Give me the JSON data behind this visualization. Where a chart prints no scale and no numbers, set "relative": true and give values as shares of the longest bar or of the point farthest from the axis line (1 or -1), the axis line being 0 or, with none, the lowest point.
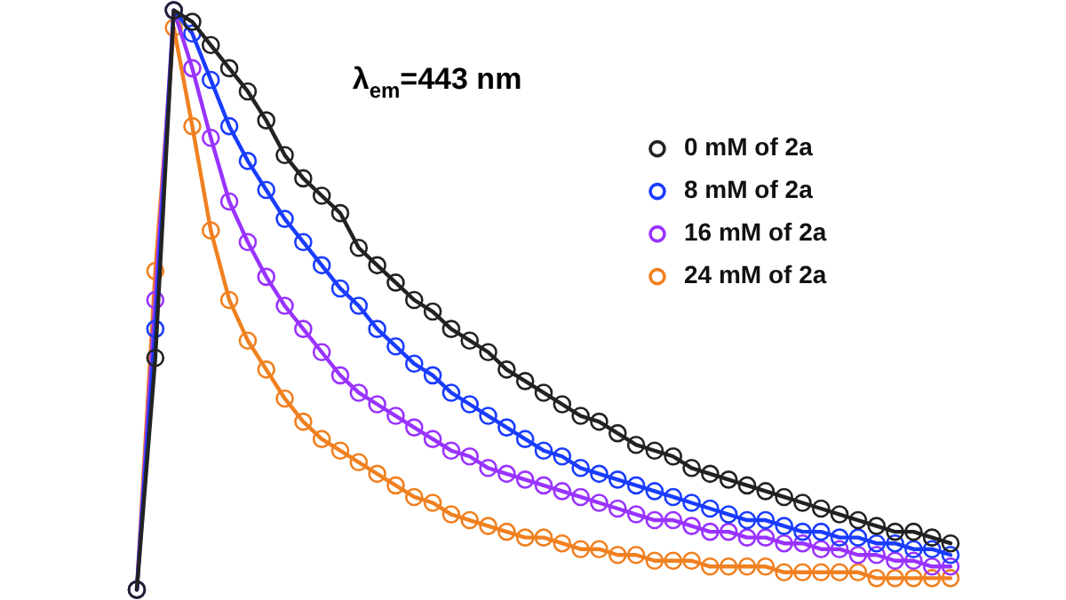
{
  "chart_data": {
    "type": "line",
    "relative": true,
    "marker": "circle",
    "legend": "top right",
    "tick_labels": false,
    "annotations": [
      "λ$_{em}$=443 nm"
    ],
    "categories": [
      null,
      null,
      null,
      null,
      null,
      null,
      null,
      null,
      null,
      null,
      null,
      null,
      null,
      null,
      null,
      null,
      null,
      null,
      null,
      null,
      null,
      null,
      null,
      null,
      null,
      null,
      null,
      null,
      null,
      null,
      null,
      null,
      null,
      null,
      null,
      null,
      null,
      null,
      null,
      null,
      null,
      null,
      null,
      null,
      null
    ],
    "series": [
      {
        "name": "0 mM of 2a",
        "color": "#222222",
        "values": [
          0,
          0.4,
          1,
          0.98,
          0.94,
          0.9,
          0.86,
          0.81,
          0.75,
          0.71,
          0.68,
          0.65,
          0.59,
          0.56,
          0.53,
          0.5,
          0.48,
          0.45,
          0.43,
          0.41,
          0.38,
          0.36,
          0.34,
          0.32,
          0.3,
          0.29,
          0.27,
          0.25,
          0.24,
          0.23,
          0.21,
          0.2,
          0.19,
          0.18,
          0.17,
          0.16,
          0.15,
          0.14,
          0.13,
          0.12,
          0.11,
          0.1,
          0.1,
          0.09,
          0.08
        ]
      },
      {
        "name": "8 mM of 2a",
        "color": "#1a3cff",
        "values": [
          0,
          0.45,
          1,
          0.96,
          0.88,
          0.8,
          0.74,
          0.69,
          0.64,
          0.6,
          0.56,
          0.52,
          0.49,
          0.45,
          0.42,
          0.39,
          0.37,
          0.34,
          0.32,
          0.3,
          0.28,
          0.26,
          0.24,
          0.23,
          0.21,
          0.2,
          0.19,
          0.18,
          0.17,
          0.16,
          0.15,
          0.14,
          0.13,
          0.12,
          0.12,
          0.11,
          0.1,
          0.1,
          0.09,
          0.09,
          0.08,
          0.08,
          0.07,
          0.07,
          0.06
        ]
      },
      {
        "name": "16 mM of 2a",
        "color": "#9933ff",
        "values": [
          0,
          0.5,
          1,
          0.9,
          0.78,
          0.67,
          0.6,
          0.54,
          0.49,
          0.45,
          0.41,
          0.37,
          0.34,
          0.32,
          0.3,
          0.28,
          0.26,
          0.24,
          0.23,
          0.21,
          0.2,
          0.19,
          0.18,
          0.17,
          0.16,
          0.15,
          0.14,
          0.13,
          0.12,
          0.12,
          0.11,
          0.1,
          0.1,
          0.09,
          0.09,
          0.08,
          0.08,
          0.07,
          0.07,
          0.06,
          0.06,
          0.05,
          0.05,
          0.04,
          0.04
        ]
      },
      {
        "name": "24 mM of 2a",
        "color": "#f08020",
        "values": [
          0,
          0.55,
          0.97,
          0.8,
          0.62,
          0.5,
          0.43,
          0.38,
          0.33,
          0.29,
          0.26,
          0.24,
          0.22,
          0.2,
          0.18,
          0.16,
          0.15,
          0.13,
          0.12,
          0.11,
          0.1,
          0.09,
          0.09,
          0.08,
          0.07,
          0.07,
          0.06,
          0.06,
          0.05,
          0.05,
          0.05,
          0.04,
          0.04,
          0.04,
          0.04,
          0.03,
          0.03,
          0.03,
          0.03,
          0.03,
          0.02,
          0.02,
          0.02,
          0.02,
          0.02
        ]
      }
    ]
  }
}
